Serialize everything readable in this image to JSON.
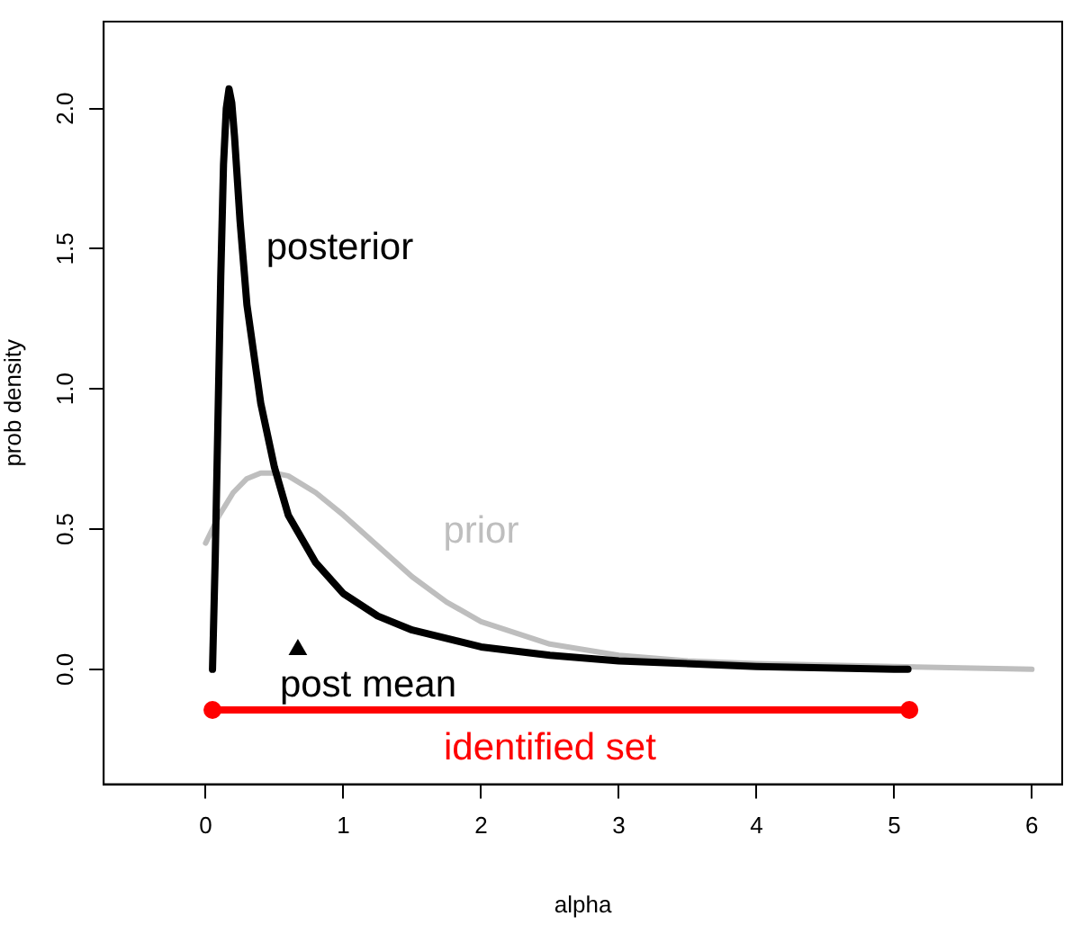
{
  "chart_data": {
    "type": "line",
    "xlabel": "alpha",
    "ylabel": "prob density",
    "xlim": [
      -0.74,
      6.22
    ],
    "xticks": [
      0,
      1,
      2,
      3,
      4,
      5,
      6
    ],
    "ylim": [
      -0.41,
      2.31
    ],
    "yticks": [
      {
        "value": 0,
        "label": "0.0"
      },
      0.5,
      {
        "value": 1,
        "label": "1.0"
      },
      1.5,
      {
        "value": 2,
        "label": "2.0"
      }
    ],
    "grid": false,
    "legend": false,
    "marker": "none",
    "line_style": "solid",
    "series": [
      {
        "name": "posterior",
        "color": "#000000",
        "x": [
          0.05,
          0.07,
          0.09,
          0.11,
          0.13,
          0.15,
          0.17,
          0.19,
          0.21,
          0.25,
          0.3,
          0.4,
          0.5,
          0.6,
          0.8,
          1.0,
          1.25,
          1.5,
          2.0,
          2.5,
          3.0,
          4.0,
          5.0,
          5.1
        ],
        "values": [
          0,
          0.4,
          0.9,
          1.4,
          1.8,
          2.0,
          2.07,
          2.02,
          1.9,
          1.6,
          1.3,
          0.95,
          0.72,
          0.55,
          0.38,
          0.27,
          0.19,
          0.14,
          0.08,
          0.05,
          0.03,
          0.01,
          0.0,
          0.0
        ]
      },
      {
        "name": "prior",
        "color": "#bebebe",
        "x": [
          0,
          0.1,
          0.2,
          0.3,
          0.4,
          0.5,
          0.6,
          0.8,
          1.0,
          1.25,
          1.5,
          1.75,
          2.0,
          2.5,
          3.0,
          3.5,
          4.0,
          5.0,
          6.0
        ],
        "values": [
          0.45,
          0.55,
          0.63,
          0.68,
          0.7,
          0.7,
          0.69,
          0.63,
          0.55,
          0.44,
          0.33,
          0.24,
          0.17,
          0.09,
          0.05,
          0.03,
          0.02,
          0.01,
          0.0
        ]
      },
      {
        "name": "post mean",
        "type": "scatter",
        "marker": "triangle",
        "color": "#000000",
        "x": [
          0.67
        ],
        "values": [
          0.07
        ]
      },
      {
        "name": "identified set",
        "marker": "circle",
        "color": "#ff0000",
        "x": [
          0.05,
          5.11
        ],
        "values": [
          -0.145,
          -0.145
        ]
      }
    ]
  }
}
